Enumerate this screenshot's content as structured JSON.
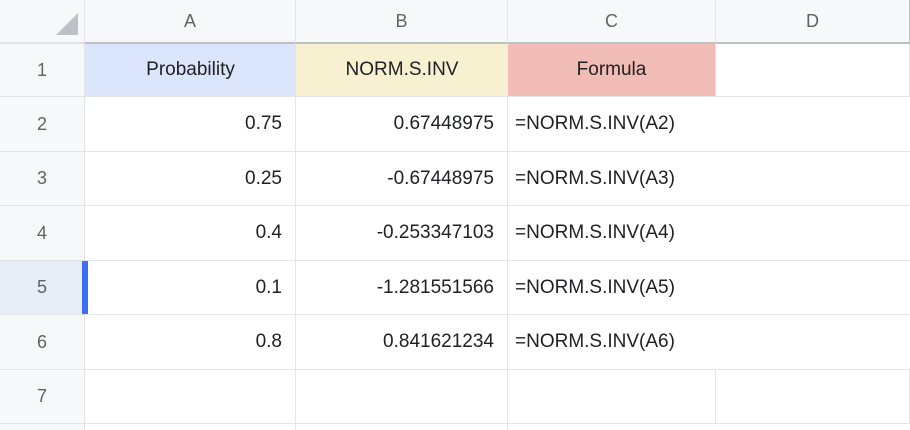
{
  "sheet": {
    "corner_icon": "select-all-triangle",
    "columns": [
      "A",
      "B",
      "C",
      "D"
    ],
    "rows": {
      "r1": {
        "n": "1",
        "a": "Probability",
        "b": "NORM.S.INV",
        "c": "Formula",
        "d": ""
      },
      "r2": {
        "n": "2",
        "a": "0.75",
        "b": "0.67448975",
        "c": "=NORM.S.INV(A2)",
        "d": ""
      },
      "r3": {
        "n": "3",
        "a": "0.25",
        "b": "-0.67448975",
        "c": "=NORM.S.INV(A3)",
        "d": ""
      },
      "r4": {
        "n": "4",
        "a": "0.4",
        "b": "-0.253347103",
        "c": "=NORM.S.INV(A4)",
        "d": ""
      },
      "r5": {
        "n": "5",
        "a": "0.1",
        "b": "-1.281551566",
        "c": "=NORM.S.INV(A5)",
        "d": ""
      },
      "r6": {
        "n": "6",
        "a": "0.8",
        "b": "0.841621234",
        "c": "=NORM.S.INV(A6)",
        "d": ""
      },
      "r7": {
        "n": "7",
        "a": "",
        "b": "",
        "c": "",
        "d": ""
      }
    },
    "selected_row": "5",
    "colors": {
      "header_fill_probability": "#dbe5fb",
      "header_fill_normsinv": "#f8f1d1",
      "header_fill_formula": "#f1bcb5",
      "selection_bar_blue": "#3e6ff2",
      "selected_row_header_bg": "#e8ecf7",
      "panel_header_bg": "#f7f8fa",
      "gridline": "#e3e5e8",
      "header_text_gray": "#5f6368",
      "cell_text": "#202124"
    }
  }
}
